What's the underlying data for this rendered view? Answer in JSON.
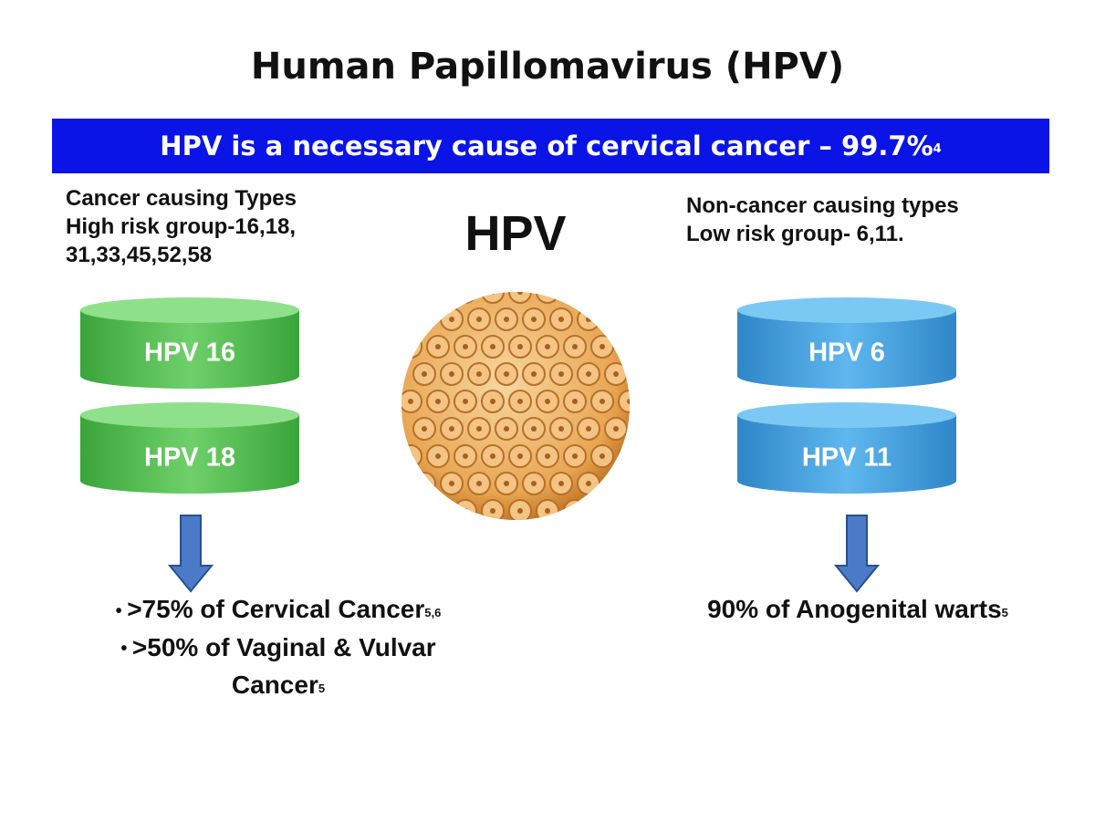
{
  "title": "Human Papillomavirus (HPV)",
  "banner": {
    "text": "HPV is a necessary cause of cervical cancer – 99.7%",
    "sup": "4"
  },
  "center_label": "HPV",
  "left": {
    "heading": [
      "Cancer causing Types",
      "High risk group-16,18,",
      "31,33,45,52,58"
    ],
    "cylinders": [
      "HPV 16",
      "HPV 18"
    ],
    "outcomes": [
      {
        "text": ">75% of Cervical Cancer",
        "sup": "5,6"
      },
      {
        "text": ">50% of Vaginal & Vulvar Cancer",
        "sup": "5"
      }
    ]
  },
  "right": {
    "heading": [
      "Non-cancer causing types",
      "Low risk group- 6,11."
    ],
    "cylinders": [
      "HPV 6",
      "HPV 11"
    ],
    "outcomes": [
      {
        "text": "90% of Anogenital warts",
        "sup": "5"
      }
    ]
  }
}
